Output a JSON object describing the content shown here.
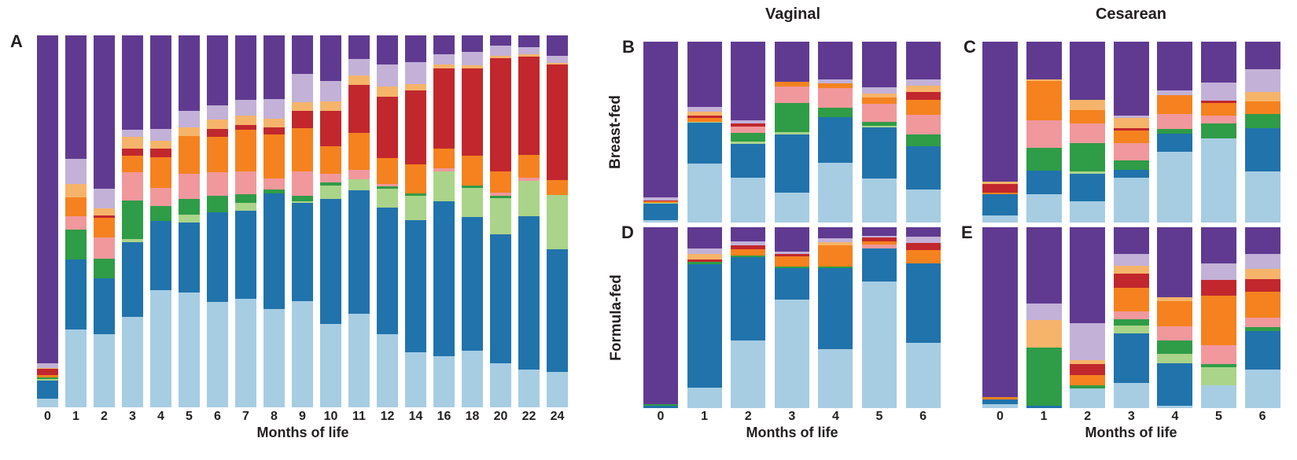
{
  "figure": {
    "column_titles": {
      "vaginal": "Vaginal",
      "cesarean": "Cesarean"
    },
    "row_titles": {
      "breast_fed": "Breast-fed",
      "formula_fed": "Formula-fed"
    },
    "x_axis_title": "Months of life",
    "text_color": "#231f20"
  },
  "chart_data": {
    "type": "bar",
    "subtype": "100-percent-stacked",
    "grid": false,
    "legend": null,
    "ylim": [
      0,
      100
    ],
    "stack_order": [
      "light-blue",
      "dark-blue",
      "light-green",
      "green",
      "pink",
      "orange",
      "red",
      "peach",
      "lavender",
      "purple"
    ],
    "colors": {
      "light-blue": "#a7cde3",
      "dark-blue": "#2173ac",
      "light-green": "#aad489",
      "green": "#2f9c47",
      "pink": "#f0989c",
      "orange": "#f5821f",
      "red": "#c1272d",
      "peach": "#f6b46a",
      "lavender": "#c3b1d7",
      "purple": "#603a91"
    },
    "panels": [
      {
        "id": "A",
        "letter": "A",
        "x_title": "Months of life",
        "categories": [
          "0",
          "1",
          "2",
          "3",
          "4",
          "5",
          "6",
          "7",
          "8",
          "9",
          "10",
          "11",
          "12",
          "14",
          "16",
          "18",
          "20",
          "22",
          "24"
        ],
        "series": [
          {
            "name": "light-blue",
            "values": [
              2.3,
              20.9,
              19.7,
              24.3,
              31.6,
              30.8,
              28.4,
              29.2,
              26.5,
              28.6,
              22.5,
              25.1,
              19.7,
              14.9,
              13.8,
              15.2,
              11.9,
              10.2,
              9.5
            ]
          },
          {
            "name": "dark-blue",
            "values": [
              4.9,
              18.9,
              14.9,
              20.1,
              18.6,
              18.8,
              24.1,
              23.6,
              31.1,
              26.3,
              33.6,
              33.3,
              34.0,
              35.5,
              41.7,
              35.9,
              34.7,
              41.4,
              33.0
            ]
          },
          {
            "name": "light-green",
            "values": [
              0.4,
              0,
              0,
              0.8,
              0,
              2.1,
              0,
              2.2,
              0,
              0.4,
              3.6,
              2.9,
              5.0,
              6.5,
              7.9,
              7.9,
              9.6,
              9.6,
              14.6
            ]
          },
          {
            "name": "green",
            "values": [
              0.4,
              8.0,
              5.4,
              10.4,
              3.9,
              4.3,
              4.3,
              2.2,
              1.0,
              1.6,
              0.7,
              0,
              0.7,
              0.7,
              0,
              0.6,
              0.7,
              0,
              0
            ]
          },
          {
            "name": "pink",
            "values": [
              0,
              3.6,
              5.6,
              7.6,
              4.8,
              6.9,
              6.4,
              6.2,
              3.0,
              6.6,
              2.5,
              2.5,
              0.7,
              0,
              0.9,
              0,
              0.9,
              0.7,
              0
            ]
          },
          {
            "name": "orange",
            "values": [
              0.6,
              5.1,
              5.3,
              4.5,
              8.4,
              10.0,
              9.6,
              11.2,
              11.7,
              11.5,
              7.2,
              10.0,
              6.9,
              7.8,
              5.2,
              8.0,
              5.7,
              6.3,
              4.1
            ]
          },
          {
            "name": "red",
            "values": [
              1.7,
              0,
              0.8,
              1.9,
              2.2,
              0,
              2.1,
              1.4,
              1.9,
              4.7,
              9.7,
              12.9,
              16.5,
              19.8,
              21.6,
              23.6,
              30.4,
              26.4,
              30.9
            ]
          },
          {
            "name": "peach",
            "values": [
              0.3,
              3.5,
              1.9,
              3.2,
              2.2,
              2.4,
              2.4,
              2.4,
              2.4,
              2.4,
              2.5,
              2.5,
              2.7,
              1.7,
              1.0,
              0.7,
              0.7,
              0.7,
              0.6
            ]
          },
          {
            "name": "lavender",
            "values": [
              1.3,
              6.9,
              5.1,
              1.8,
              3.2,
              4.5,
              4.0,
              4.3,
              5.3,
              7.6,
              5.4,
              4.4,
              5.9,
              5.9,
              2.9,
              3.6,
              2.7,
              1.9,
              1.8
            ]
          },
          {
            "name": "purple",
            "values": [
              88.1,
              33.1,
              41.3,
              25.4,
              25.1,
              20.2,
              18.7,
              17.3,
              17.1,
              10.3,
              12.3,
              6.4,
              7.9,
              7.2,
              5.0,
              4.5,
              2.7,
              3.2,
              5.5
            ]
          }
        ]
      },
      {
        "id": "B",
        "letter": "B",
        "column": "Vaginal",
        "row": "Breast-fed",
        "categories": [
          "0",
          "1",
          "2",
          "3",
          "4",
          "5",
          "6"
        ],
        "series": [
          {
            "name": "light-blue",
            "values": [
              1.4,
              32.6,
              24.6,
              16.7,
              32.9,
              24.2,
              18.1
            ]
          },
          {
            "name": "dark-blue",
            "values": [
              9.0,
              22.5,
              19.1,
              32.2,
              25.5,
              28.4,
              23.9
            ]
          },
          {
            "name": "light-green",
            "values": [
              0.5,
              0.7,
              0.9,
              0.9,
              0,
              1.0,
              0
            ]
          },
          {
            "name": "green",
            "values": [
              0,
              0,
              5.1,
              16.5,
              4.9,
              2.2,
              6.8
            ]
          },
          {
            "name": "pink",
            "values": [
              0,
              0,
              3.5,
              9.1,
              11.0,
              9.9,
              10.6
            ]
          },
          {
            "name": "orange",
            "values": [
              0.7,
              2.0,
              0,
              2.5,
              2.5,
              3.5,
              8.3
            ]
          },
          {
            "name": "red",
            "values": [
              0.7,
              1.2,
              1.6,
              0,
              0,
              0,
              4.3
            ]
          },
          {
            "name": "peach",
            "values": [
              0,
              2.3,
              0,
              0,
              0,
              2.3,
              3.8
            ]
          },
          {
            "name": "lavender",
            "values": [
              1.8,
              2.5,
              1.7,
              0,
              2.5,
              3.5,
              3.2
            ]
          },
          {
            "name": "purple",
            "values": [
              85.9,
              36.2,
              43.5,
              22.1,
              20.7,
              25.0,
              21.0
            ]
          }
        ]
      },
      {
        "id": "C",
        "letter": "C",
        "column": "Cesarean",
        "row": "Breast-fed",
        "categories": [
          "0",
          "1",
          "2",
          "3",
          "4",
          "5",
          "6"
        ],
        "series": [
          {
            "name": "light-blue",
            "values": [
              4.1,
              15.7,
              11.7,
              24.6,
              39.1,
              46.7,
              28.1
            ]
          },
          {
            "name": "dark-blue",
            "values": [
              11.4,
              12.9,
              15.4,
              4.6,
              10.0,
              0,
              23.9
            ]
          },
          {
            "name": "light-green",
            "values": [
              0,
              0,
              1.0,
              0,
              0,
              0,
              0
            ]
          },
          {
            "name": "green",
            "values": [
              0,
              12.7,
              15.7,
              5.1,
              2.6,
              8.1,
              8.0
            ]
          },
          {
            "name": "pink",
            "values": [
              0,
              15.4,
              11.0,
              9.6,
              8.3,
              4.3,
              0
            ]
          },
          {
            "name": "orange",
            "values": [
              0.9,
              21.4,
              7.6,
              6.9,
              10.6,
              7.1,
              7.1
            ]
          },
          {
            "name": "red",
            "values": [
              4.9,
              0,
              0,
              1.3,
              0,
              1.4,
              0
            ]
          },
          {
            "name": "peach",
            "values": [
              1.4,
              1.0,
              5.3,
              5.7,
              0,
              0,
              4.9
            ]
          },
          {
            "name": "lavender",
            "values": [
              0,
              0,
              0,
              1.4,
              2.3,
              9.8,
              12.9
            ]
          },
          {
            "name": "purple",
            "values": [
              77.3,
              20.9,
              32.3,
              40.8,
              27.1,
              22.6,
              15.1
            ]
          }
        ]
      },
      {
        "id": "D",
        "letter": "D",
        "column": "Vaginal",
        "row": "Formula-fed",
        "x_title": "Months of life",
        "categories": [
          "0",
          "1",
          "2",
          "3",
          "4",
          "5",
          "6"
        ],
        "series": [
          {
            "name": "light-blue",
            "values": [
              0,
              11.2,
              37.2,
              60.1,
              32.6,
              70.0,
              36.2
            ]
          },
          {
            "name": "dark-blue",
            "values": [
              1.2,
              68.1,
              46.4,
              17.4,
              44.6,
              18.4,
              43.9
            ]
          },
          {
            "name": "light-green",
            "values": [
              0,
              0,
              0,
              0,
              0,
              0,
              0
            ]
          },
          {
            "name": "green",
            "values": [
              1.0,
              1.4,
              0.9,
              0.7,
              1.0,
              0,
              0
            ]
          },
          {
            "name": "pink",
            "values": [
              0,
              0,
              0,
              0,
              0,
              1.9,
              0
            ]
          },
          {
            "name": "orange",
            "values": [
              0,
              0,
              3.5,
              5.8,
              12.0,
              2.0,
              7.2
            ]
          },
          {
            "name": "red",
            "values": [
              0,
              1.4,
              1.9,
              1.4,
              0,
              1.9,
              3.9
            ]
          },
          {
            "name": "peach",
            "values": [
              0,
              2.9,
              0,
              0,
              1.4,
              0,
              0
            ]
          },
          {
            "name": "lavender",
            "values": [
              0,
              3.3,
              2.5,
              1.1,
              2.5,
              1.0,
              3.4
            ]
          },
          {
            "name": "purple",
            "values": [
              97.8,
              11.6,
              7.6,
              13.5,
              5.9,
              4.8,
              5.4
            ]
          }
        ]
      },
      {
        "id": "E",
        "letter": "E",
        "column": "Cesarean",
        "row": "Formula-fed",
        "x_title": "Months of life",
        "categories": [
          "0",
          "1",
          "2",
          "3",
          "4",
          "5",
          "6"
        ],
        "series": [
          {
            "name": "light-blue",
            "values": [
              2.2,
              0,
              11.0,
              14.1,
              1.2,
              12.7,
              21.4
            ]
          },
          {
            "name": "dark-blue",
            "values": [
              2.6,
              1.2,
              0,
              27.4,
              23.8,
              0,
              21.4
            ]
          },
          {
            "name": "light-green",
            "values": [
              0,
              0,
              0,
              4.0,
              5.1,
              10.1,
              0
            ]
          },
          {
            "name": "green",
            "values": [
              0,
              32.5,
              1.7,
              3.5,
              7.2,
              1.7,
              2.0
            ]
          },
          {
            "name": "pink",
            "values": [
              0,
              0,
              0,
              4.3,
              7.9,
              10.1,
              5.2
            ]
          },
          {
            "name": "orange",
            "values": [
              1.4,
              0,
              5.5,
              13.4,
              14.0,
              27.4,
              14.4
            ]
          },
          {
            "name": "red",
            "values": [
              0,
              0,
              6.3,
              7.6,
              0,
              8.7,
              6.8
            ]
          },
          {
            "name": "peach",
            "values": [
              0,
              14.9,
              1.9,
              4.6,
              2.3,
              0,
              5.8
            ]
          },
          {
            "name": "lavender",
            "values": [
              0,
              9.2,
              20.6,
              6.5,
              0,
              9.5,
              8.2
            ]
          },
          {
            "name": "purple",
            "values": [
              93.8,
              42.2,
              53.0,
              14.6,
              38.5,
              19.8,
              14.8
            ]
          }
        ]
      }
    ]
  }
}
